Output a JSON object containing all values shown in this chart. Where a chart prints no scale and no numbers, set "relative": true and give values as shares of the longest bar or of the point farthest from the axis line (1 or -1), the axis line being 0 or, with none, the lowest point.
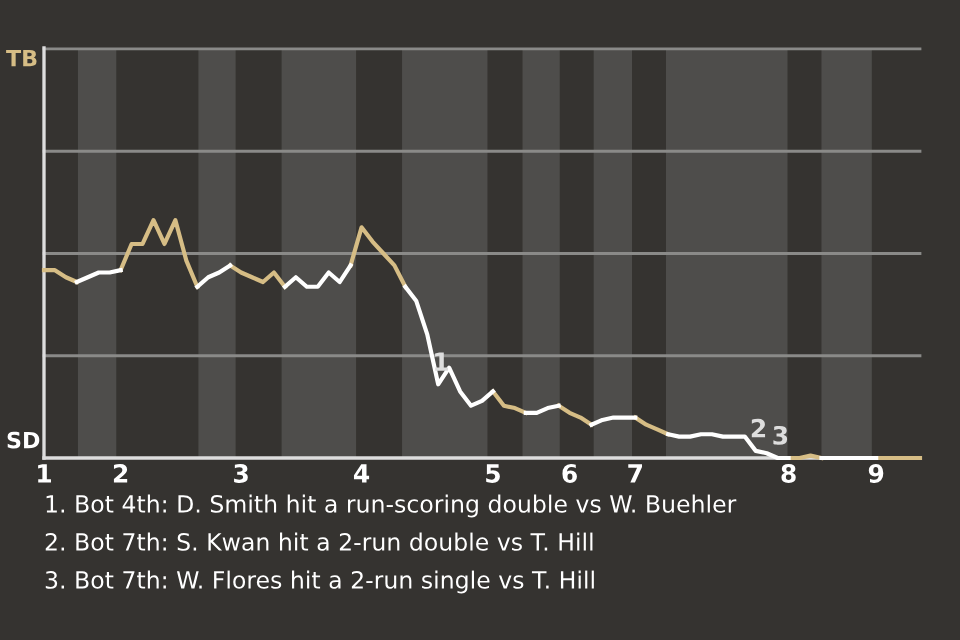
{
  "chart_data": {
    "type": "line",
    "relative": true,
    "categories": [
      "1",
      null,
      null,
      null,
      null,
      null,
      null,
      "2",
      null,
      null,
      null,
      null,
      null,
      null,
      null,
      null,
      null,
      null,
      "3",
      null,
      null,
      null,
      null,
      null,
      null,
      null,
      null,
      null,
      null,
      "4",
      null,
      null,
      null,
      null,
      null,
      null,
      null,
      null,
      null,
      null,
      null,
      "5",
      null,
      null,
      null,
      null,
      null,
      null,
      "6",
      null,
      null,
      null,
      null,
      null,
      "7",
      null,
      null,
      null,
      null,
      null,
      null,
      null,
      null,
      null,
      null,
      null,
      null,
      null,
      "8",
      null,
      null,
      null,
      null,
      null,
      null,
      null,
      "9",
      null,
      null,
      null,
      null
    ],
    "series": [
      {
        "name": "TB",
        "color": "#d6bd85",
        "values": [
          0.79,
          0.79,
          0.76,
          0.74,
          null,
          null,
          null,
          0.79,
          0.9,
          0.9,
          1,
          0.9,
          1,
          0.83,
          0.72,
          null,
          null,
          0.81,
          0.78,
          0.76,
          0.74,
          0.78,
          0.72,
          null,
          null,
          null,
          null,
          null,
          0.81,
          0.97,
          0.91,
          0.86,
          0.81,
          0.72,
          null,
          null,
          null,
          null,
          null,
          null,
          null,
          0.28,
          0.22,
          0.21,
          0.19,
          null,
          null,
          0.22,
          0.19,
          0.17,
          0.14,
          null,
          null,
          null,
          0.17,
          0.14,
          0.12,
          0.1,
          null,
          null,
          null,
          null,
          null,
          null,
          null,
          null,
          null,
          null,
          0,
          0,
          0.01,
          0,
          null,
          null,
          null,
          null,
          0,
          0,
          0,
          0,
          0
        ]
      },
      {
        "name": "SD",
        "color": "#ffffff",
        "values": [
          null,
          null,
          null,
          0.74,
          0.76,
          0.78,
          0.78,
          0.79,
          null,
          null,
          null,
          null,
          null,
          null,
          0.72,
          0.76,
          0.78,
          0.81,
          null,
          null,
          null,
          null,
          0.72,
          0.76,
          0.72,
          0.72,
          0.78,
          0.74,
          0.81,
          null,
          null,
          null,
          null,
          0.72,
          0.66,
          0.52,
          0.31,
          0.38,
          0.28,
          0.22,
          0.24,
          0.28,
          null,
          null,
          0.19,
          0.19,
          0.21,
          0.22,
          null,
          null,
          0.14,
          0.16,
          0.17,
          0.17,
          0.17,
          null,
          null,
          0.1,
          0.09,
          0.09,
          0.1,
          0.1,
          0.09,
          0.09,
          0.09,
          0.03,
          0.02,
          0,
          0,
          null,
          null,
          0,
          0,
          0,
          0,
          0,
          0,
          null,
          null,
          null,
          null
        ]
      }
    ],
    "ref_lines": [
      {
        "axis": "y",
        "value": 0.43,
        "color": "#8a8a88"
      },
      {
        "axis": "y",
        "value": 0.86,
        "color": "#8a8a88"
      },
      {
        "axis": "y",
        "value": 1.29,
        "color": "#8a8a88"
      },
      {
        "axis": "y",
        "value": 1.72,
        "color": "#8a8a88"
      }
    ],
    "annotations": [
      {
        "text": "1",
        "y": 0.31
      },
      {
        "text": "2",
        "y": 0.03
      },
      {
        "text": "3",
        "y": 0
      },
      "1. Bot 4th: D. Smith hit a run-scoring double vs W. Buehler",
      "2. Bot 7th: S. Kwan hit a 2-run double vs T. Hill",
      "3. Bot 7th: W. Flores hit a 2-run single vs T. Hill"
    ]
  }
}
